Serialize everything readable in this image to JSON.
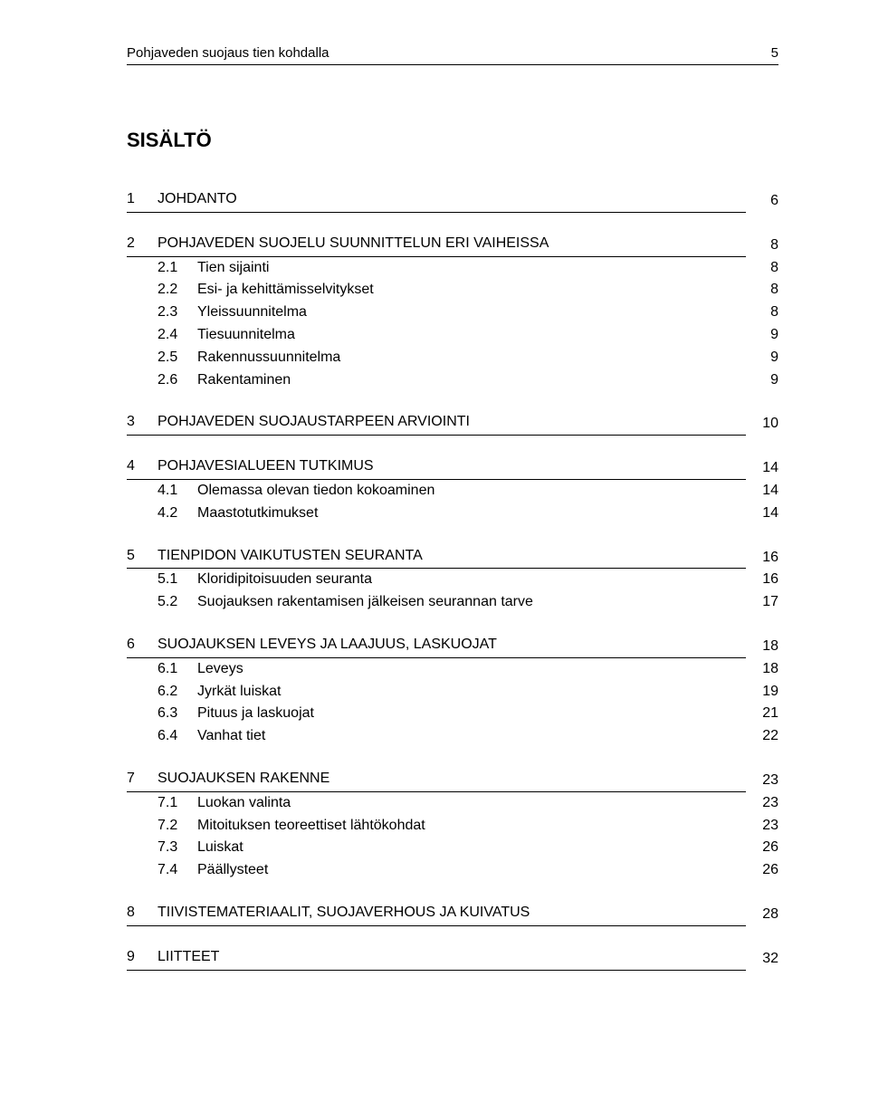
{
  "header": {
    "title": "Pohjaveden suojaus tien kohdalla",
    "page_number": "5"
  },
  "toc_title": "SISÄLTÖ",
  "toc": [
    {
      "num": "1",
      "label": "JOHDANTO",
      "page": "6",
      "subs": []
    },
    {
      "num": "2",
      "label": "POHJAVEDEN SUOJELU SUUNNITTELUN ERI VAIHEISSA",
      "page": "8",
      "subs": [
        {
          "num": "2.1",
          "label": "Tien sijainti",
          "page": "8"
        },
        {
          "num": "2.2",
          "label": "Esi- ja kehittämisselvitykset",
          "page": "8"
        },
        {
          "num": "2.3",
          "label": "Yleissuunnitelma",
          "page": "8"
        },
        {
          "num": "2.4",
          "label": "Tiesuunnitelma",
          "page": "9"
        },
        {
          "num": "2.5",
          "label": "Rakennussuunnitelma",
          "page": "9"
        },
        {
          "num": "2.6",
          "label": "Rakentaminen",
          "page": "9"
        }
      ]
    },
    {
      "num": "3",
      "label": "POHJAVEDEN SUOJAUSTARPEEN ARVIOINTI",
      "page": "10",
      "subs": []
    },
    {
      "num": "4",
      "label": "POHJAVESIALUEEN TUTKIMUS",
      "page": "14",
      "subs": [
        {
          "num": "4.1",
          "label": "Olemassa olevan tiedon kokoaminen",
          "page": "14"
        },
        {
          "num": "4.2",
          "label": "Maastotutkimukset",
          "page": "14"
        }
      ]
    },
    {
      "num": "5",
      "label": "TIENPIDON VAIKUTUSTEN SEURANTA",
      "page": "16",
      "subs": [
        {
          "num": "5.1",
          "label": "Kloridipitoisuuden seuranta",
          "page": "16"
        },
        {
          "num": "5.2",
          "label": "Suojauksen rakentamisen jälkeisen seurannan tarve",
          "page": "17"
        }
      ]
    },
    {
      "num": "6",
      "label": "SUOJAUKSEN LEVEYS JA LAAJUUS, LASKUOJAT",
      "page": "18",
      "subs": [
        {
          "num": "6.1",
          "label": "Leveys",
          "page": "18"
        },
        {
          "num": "6.2",
          "label": "Jyrkät luiskat",
          "page": "19"
        },
        {
          "num": "6.3",
          "label": "Pituus ja laskuojat",
          "page": "21"
        },
        {
          "num": "6.4",
          "label": "Vanhat tiet",
          "page": "22"
        }
      ]
    },
    {
      "num": "7",
      "label": "SUOJAUKSEN RAKENNE",
      "page": "23",
      "subs": [
        {
          "num": "7.1",
          "label": "Luokan valinta",
          "page": "23"
        },
        {
          "num": "7.2",
          "label": "Mitoituksen teoreettiset lähtökohdat",
          "page": "23"
        },
        {
          "num": "7.3",
          "label": "Luiskat",
          "page": "26"
        },
        {
          "num": "7.4",
          "label": "Päällysteet",
          "page": "26"
        }
      ]
    },
    {
      "num": "8",
      "label": "TIIVISTEMATERIAALIT, SUOJAVERHOUS JA KUIVATUS",
      "page": "28",
      "subs": []
    },
    {
      "num": "9",
      "label": "LIITTEET",
      "page": "32",
      "subs": []
    }
  ]
}
